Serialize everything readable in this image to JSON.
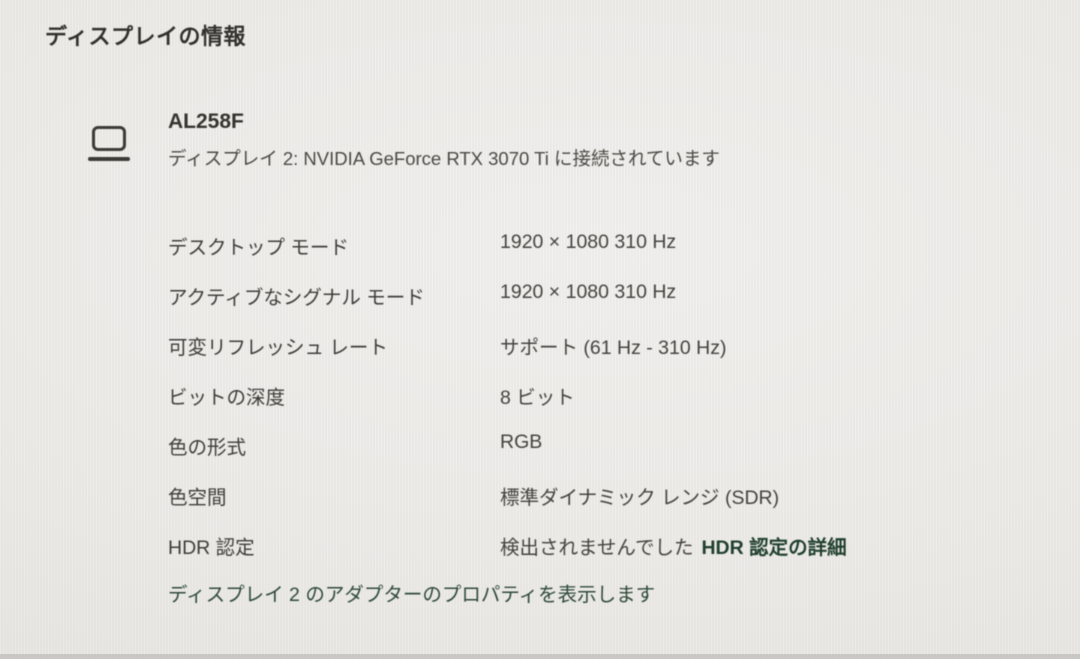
{
  "header": {
    "title": "ディスプレイの情報"
  },
  "display": {
    "icon": "monitor-icon",
    "name": "AL258F",
    "connection": "ディスプレイ 2: NVIDIA GeForce RTX 3070 Ti に接続されています"
  },
  "info": {
    "rows": [
      {
        "label": "デスクトップ モード",
        "value": "1920 × 1080 310 Hz"
      },
      {
        "label": "アクティブなシグナル モード",
        "value": "1920 × 1080 310 Hz"
      },
      {
        "label": "可変リフレッシュ レート",
        "value": "サポート (61 Hz - 310 Hz)"
      },
      {
        "label": "ビットの深度",
        "value": "8 ビット"
      },
      {
        "label": "色の形式",
        "value": "RGB"
      },
      {
        "label": "色空間",
        "value": "標準ダイナミック レンジ (SDR)"
      },
      {
        "label": "HDR 認定",
        "value": "検出されませんでした",
        "link_label": "HDR 認定の詳細"
      }
    ]
  },
  "links": {
    "adapter_properties": "ディスプレイ 2 のアダプターのプロパティを表示します"
  },
  "colors": {
    "link_accent": "#21402e",
    "text": "#403e3a",
    "background": "#edebe8"
  }
}
